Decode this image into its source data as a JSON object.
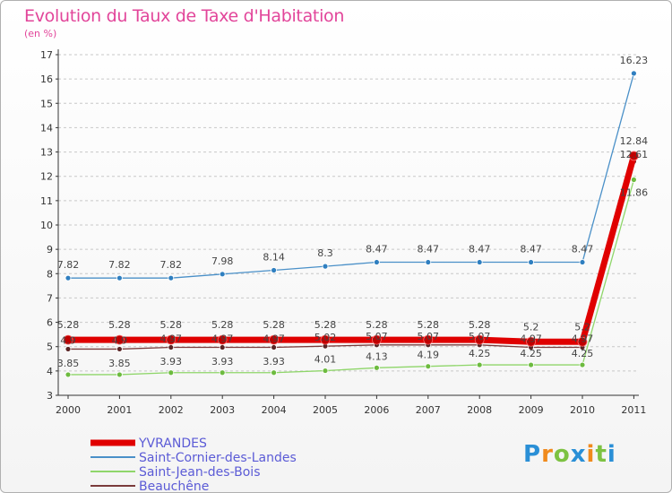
{
  "header": {
    "title": "Evolution du Taux de Taxe d'Habitation",
    "subtitle": "(en %)"
  },
  "logo": {
    "text": "Proxiti",
    "letters": [
      "P",
      "r",
      "o",
      "x",
      "i",
      "t",
      "i"
    ],
    "colors": [
      "#2a8fd6",
      "#f08a1c",
      "#7dc242",
      "#2a8fd6",
      "#f08a1c",
      "#7dc242",
      "#2a8fd6"
    ]
  },
  "chart_data": {
    "type": "line",
    "title": "Evolution du Taux de Taxe d'Habitation",
    "ylabel": "(en %)",
    "x": [
      "2000",
      "2001",
      "2002",
      "2003",
      "2004",
      "2005",
      "2006",
      "2007",
      "2008",
      "2009",
      "2010",
      "2011"
    ],
    "ylim": [
      3,
      17
    ],
    "yticks": [
      "3",
      "4",
      "5",
      "6",
      "7",
      "8",
      "9",
      "10",
      "11",
      "12",
      "13",
      "14",
      "15",
      "16",
      "17"
    ],
    "grid": "horizontal-dashed",
    "legend_position": "bottom-left",
    "series": [
      {
        "name": "Saint-Cornier-des-Landes",
        "color": "#4a90c8",
        "marker": "#2f7fc0",
        "width": 1.3,
        "values": [
          7.82,
          7.82,
          7.82,
          7.98,
          8.14,
          8.3,
          8.47,
          8.47,
          8.47,
          8.47,
          8.47,
          16.23
        ],
        "labels": [
          "7.82",
          "7.82",
          "7.82",
          "7.98",
          "8.14",
          "8.3",
          "8.47",
          "8.47",
          "8.47",
          "8.47",
          "8.47",
          "16.23"
        ]
      },
      {
        "name": "Saint-Jean-des-Bois",
        "color": "#8fd66a",
        "marker": "#6dbb3f",
        "width": 1.3,
        "values": [
          3.85,
          3.85,
          3.93,
          3.93,
          3.93,
          4.01,
          4.13,
          4.19,
          4.25,
          4.25,
          4.25,
          11.86
        ],
        "labels": [
          "3.85",
          "3.85",
          "3.93",
          "3.93",
          "3.93",
          "4.01",
          "4.13",
          "4.19",
          "4.25",
          "4.25",
          "4.25",
          "11.86"
        ]
      },
      {
        "name": "Beauchêne",
        "color": "#7a3b3b",
        "marker": "#5a2525",
        "width": 1.3,
        "values": [
          4.9,
          4.9,
          4.97,
          4.97,
          4.97,
          5.02,
          5.07,
          5.07,
          5.07,
          4.97,
          4.97,
          12.61
        ],
        "labels": [
          "4.9",
          "4.9",
          "4.97",
          "4.97",
          "4.97",
          "5.02",
          "5.07",
          "5.07",
          "5.07",
          "4.97",
          "4.97",
          "12.61"
        ]
      },
      {
        "name": "YVRANDES",
        "color": "#e00000",
        "marker": "#c00000",
        "width": 7,
        "values": [
          5.28,
          5.28,
          5.28,
          5.28,
          5.28,
          5.28,
          5.28,
          5.28,
          5.28,
          5.2,
          5.2,
          12.84
        ],
        "labels": [
          "5.28",
          "5.28",
          "5.28",
          "5.28",
          "5.28",
          "5.28",
          "5.28",
          "5.28",
          "5.28",
          "5.2",
          "5.2",
          "12.84"
        ]
      }
    ],
    "legend": [
      "YVRANDES",
      "Saint-Cornier-des-Landes",
      "Saint-Jean-des-Bois",
      "Beauchêne"
    ]
  }
}
